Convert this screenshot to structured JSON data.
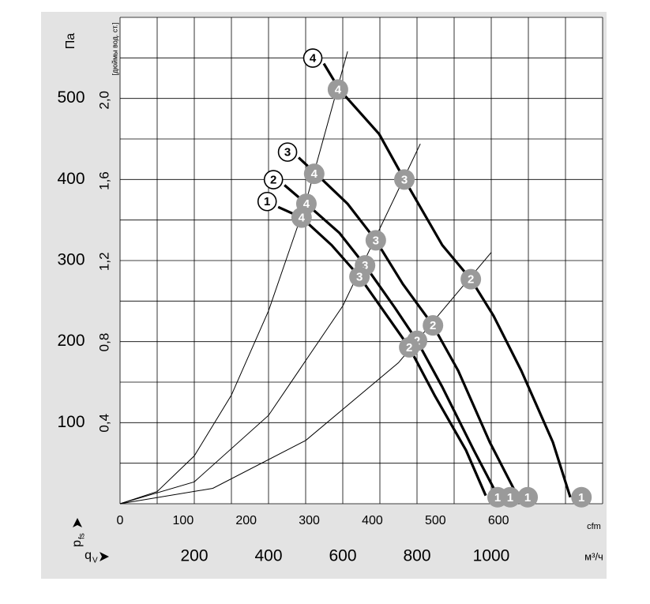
{
  "chart_data": {
    "type": "line",
    "y_label": "Па",
    "y2_label": "[дюймы вод. ст.]",
    "x_label": "м³/ч",
    "x2_label": "cfm",
    "y_symbol": "p",
    "y_symbol_sub": "fs",
    "x_symbol": "q",
    "x_symbol_sub": "V",
    "xlim": [
      0,
      1300
    ],
    "xticks": [
      200,
      400,
      600,
      800,
      1000
    ],
    "ylim": [
      0,
      600
    ],
    "yticks": [
      100,
      200,
      300,
      400,
      500
    ],
    "x2lim": [
      0,
      765
    ],
    "x2ticks": [
      0,
      100,
      200,
      300,
      400,
      500,
      600
    ],
    "y2lim": [
      0,
      2.41
    ],
    "y2ticks": [
      {
        "value": 0.4,
        "label": "0,4"
      },
      {
        "value": 0.8,
        "label": "0,8"
      },
      {
        "value": 1.2,
        "label": "1,2"
      },
      {
        "value": 1.6,
        "label": "1,6"
      },
      {
        "value": 2.0,
        "label": "2,0"
      }
    ],
    "xgrid": [
      0,
      100,
      200,
      300,
      400,
      500,
      600,
      700,
      800,
      900,
      1000,
      1100,
      1200,
      1300
    ],
    "ygrid": [
      0,
      50,
      100,
      150,
      200,
      250,
      300,
      350,
      400,
      450,
      500,
      550,
      600
    ],
    "series": [
      {
        "name": "4",
        "color": "#000000",
        "x": [
          549,
          591,
          698,
          766,
          868,
          945,
          1006,
          1081,
          1166,
          1213
        ],
        "values": [
          543,
          511,
          456,
          400,
          319,
          277,
          232,
          164,
          76,
          8
        ],
        "markers": {
          "labels": [
            "4",
            "3",
            "2",
            "1"
          ],
          "x": [
            587,
            766,
            945,
            1243
          ],
          "values": [
            511,
            400,
            277,
            8
          ]
        }
      },
      {
        "name": "3",
        "color": "#000000",
        "x": [
          481,
          528,
          613,
          689,
          762,
          843,
          911,
          996,
          1070
        ],
        "values": [
          427,
          407,
          370,
          325,
          271,
          220,
          164,
          76,
          10
        ],
        "markers": {
          "labels": [
            "4",
            "3",
            "2",
            "1"
          ],
          "x": [
            523,
            689,
            843,
            1098
          ],
          "values": [
            407,
            325,
            220,
            8
          ]
        }
      },
      {
        "name": "2",
        "color": "#000000",
        "x": [
          443,
          502,
          591,
          660,
          740,
          800,
          868,
          953,
          1017
        ],
        "values": [
          393,
          370,
          334,
          294,
          242,
          201,
          144,
          66,
          10
        ],
        "markers": {
          "labels": [
            "4",
            "3",
            "2",
            "1"
          ],
          "x": [
            502,
            660,
            800,
            1051
          ],
          "values": [
            370,
            294,
            201,
            8
          ]
        }
      },
      {
        "name": "1",
        "color": "#000000",
        "x": [
          426,
          489,
          570,
          645,
          719,
          779,
          847,
          932,
          985
        ],
        "values": [
          366,
          353,
          319,
          280,
          232,
          193,
          134,
          66,
          10
        ],
        "markers": {
          "labels": [
            "4",
            "3",
            "2",
            "1"
          ],
          "x": [
            489,
            645,
            779,
            1017
          ],
          "values": [
            353,
            280,
            193,
            8
          ]
        }
      }
    ],
    "system_curves": [
      {
        "x": [
          0,
          100,
          200,
          300,
          400,
          500,
          613
        ],
        "values": [
          0,
          15,
          59,
          134,
          238,
          371,
          558
        ]
      },
      {
        "x": [
          0,
          200,
          400,
          600,
          809
        ],
        "values": [
          0,
          27,
          109,
          244,
          444
        ]
      },
      {
        "x": [
          0,
          250,
          500,
          750,
          1000
        ],
        "values": [
          0,
          19,
          78,
          174,
          310
        ]
      }
    ],
    "marker_color": "#9a9a9a"
  }
}
